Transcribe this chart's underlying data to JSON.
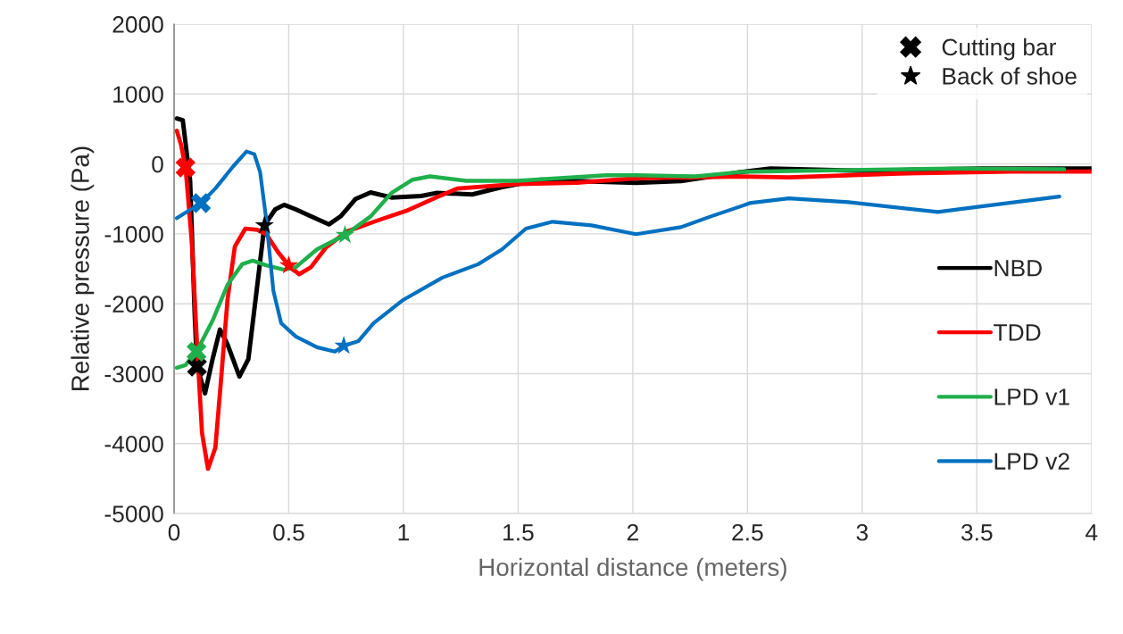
{
  "chart_data": {
    "type": "line",
    "xlabel": "Horizontal distance (meters)",
    "ylabel": "Relative pressure (Pa)",
    "xlim": [
      0,
      4
    ],
    "xticks": [
      0,
      0.5,
      1,
      1.5,
      2,
      2.5,
      3,
      3.5,
      4
    ],
    "ylim": [
      -5000,
      2000
    ],
    "yticks": [
      -5000,
      -4000,
      -3000,
      -2000,
      -1000,
      0,
      1000,
      2000
    ],
    "grid": true,
    "legend": "right",
    "line_style": "solid",
    "marker": "none",
    "series": [
      {
        "name": "NBD",
        "color": "#000000",
        "x": [
          0.012,
          0.038,
          0.07,
          0.09,
          0.1,
          0.135,
          0.168,
          0.2,
          0.233,
          0.285,
          0.324,
          0.363,
          0.394,
          0.441,
          0.48,
          0.531,
          0.597,
          0.675,
          0.726,
          0.792,
          0.857,
          0.948,
          1.077,
          1.143,
          1.3,
          1.43,
          1.6,
          1.755,
          2.014,
          2.21,
          2.34,
          2.47,
          2.6,
          3.0,
          3.52,
          4.0
        ],
        "values": [
          650,
          624,
          -242,
          -2150,
          -2900,
          -3280,
          -2790,
          -2370,
          -2580,
          -3040,
          -2790,
          -1730,
          -878,
          -650,
          -585,
          -650,
          -750,
          -865,
          -750,
          -500,
          -407,
          -480,
          -458,
          -415,
          -436,
          -331,
          -225,
          -245,
          -270,
          -245,
          -180,
          -118,
          -67,
          -97,
          -67,
          -67
        ]
      },
      {
        "name": "TDD",
        "color": "#ff0000",
        "x": [
          0.012,
          0.031,
          0.05,
          0.077,
          0.1,
          0.122,
          0.148,
          0.18,
          0.207,
          0.233,
          0.265,
          0.311,
          0.363,
          0.402,
          0.453,
          0.5,
          0.545,
          0.597,
          0.662,
          0.753,
          0.882,
          1.013,
          1.143,
          1.235,
          1.495,
          1.755,
          2.014,
          2.47,
          2.68,
          3.13,
          3.65,
          4.0
        ],
        "values": [
          475,
          267,
          -51,
          -1095,
          -2580,
          -3852,
          -4360,
          -4060,
          -3000,
          -1943,
          -1180,
          -925,
          -942,
          -1005,
          -1260,
          -1451,
          -1578,
          -1476,
          -1196,
          -967,
          -815,
          -670,
          -480,
          -352,
          -289,
          -268,
          -204,
          -180,
          -191,
          -140,
          -110,
          -110
        ]
      },
      {
        "name": "LPD v1",
        "color": "#1faf4b",
        "x": [
          0.012,
          0.05,
          0.098,
          0.168,
          0.233,
          0.297,
          0.343,
          0.402,
          0.48,
          0.531,
          0.623,
          0.745,
          0.857,
          0.948,
          1.04,
          1.116,
          1.274,
          1.495,
          1.885,
          2.014,
          2.275,
          2.47,
          2.74,
          3.39,
          3.88
        ],
        "values": [
          -2915,
          -2876,
          -2685,
          -2240,
          -1730,
          -1434,
          -1383,
          -1451,
          -1514,
          -1476,
          -1222,
          -1018,
          -751,
          -416,
          -225,
          -178,
          -242,
          -242,
          -162,
          -162,
          -178,
          -115,
          -97,
          -67,
          -76
        ]
      },
      {
        "name": "LPD v2",
        "color": "#0070c0",
        "x": [
          0.012,
          0.117,
          0.18,
          0.258,
          0.316,
          0.35,
          0.375,
          0.402,
          0.433,
          0.467,
          0.531,
          0.623,
          0.701,
          0.74,
          0.804,
          0.87,
          1.0,
          1.17,
          1.326,
          1.43,
          1.534,
          1.65,
          1.82,
          2.014,
          2.21,
          2.34,
          2.47,
          2.51,
          2.68,
          2.94,
          3.33,
          3.52,
          3.86
        ],
        "values": [
          -776,
          -560,
          -352,
          -34,
          178,
          140,
          -115,
          -798,
          -1816,
          -2278,
          -2469,
          -2622,
          -2685,
          -2600,
          -2533,
          -2278,
          -1943,
          -1625,
          -1434,
          -1222,
          -925,
          -827,
          -878,
          -1005,
          -904,
          -751,
          -607,
          -560,
          -492,
          -547,
          -687,
          -607,
          -467
        ]
      },
      {
        "name": "Cutting bar",
        "type": "scatter",
        "marker": "cross",
        "color": "#000000",
        "colors": [
          "#000000",
          "#ff0000",
          "#1faf4b",
          "#0070c0"
        ],
        "x": [
          0.1,
          0.05,
          0.098,
          0.117
        ],
        "values": [
          -2900,
          -51,
          -2685,
          -560
        ]
      },
      {
        "name": "Back of shoe",
        "type": "scatter",
        "marker": "star",
        "color": "#000000",
        "colors": [
          "#000000",
          "#ff0000",
          "#1faf4b",
          "#0070c0"
        ],
        "x": [
          0.394,
          0.5,
          0.745,
          0.74
        ],
        "values": [
          -878,
          -1451,
          -1018,
          -2600
        ]
      }
    ]
  }
}
